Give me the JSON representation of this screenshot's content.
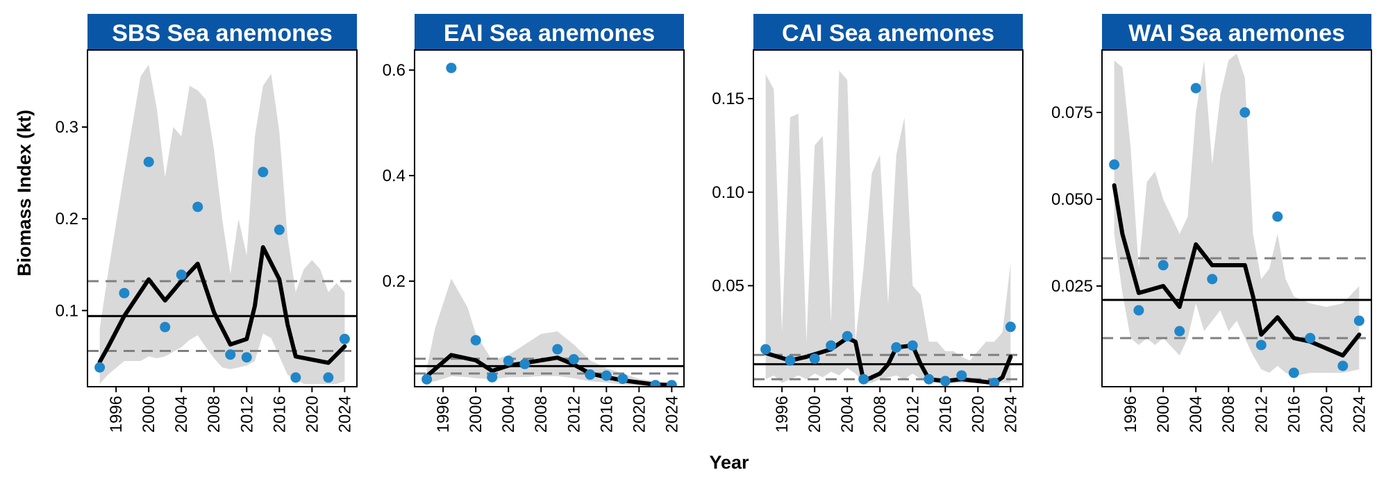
{
  "x_axis_title": "Year",
  "y_axis_title": "Biomass Index (kt)",
  "colors": {
    "strip": "#0a56a6",
    "strip_text": "#ffffff",
    "ribbon": "#d9d9d9",
    "trend_line": "#000000",
    "points": "#1f86c9",
    "mean_line": "#000000",
    "sd_lines": "#808080"
  },
  "chart_data": [
    {
      "type": "line",
      "title": "SBS Sea anemones",
      "xlim": [
        1992.5,
        2025.5
      ],
      "ylim": [
        0.017,
        0.384
      ],
      "xticks": [
        1996,
        2000,
        2004,
        2008,
        2012,
        2016,
        2020,
        2024
      ],
      "yticks": [
        0.1,
        0.2,
        0.3
      ],
      "ytick_labels": [
        "0.1",
        "0.2",
        "0.3"
      ],
      "points": {
        "x": [
          1994,
          1997,
          2000,
          2002,
          2004,
          2006,
          2010,
          2012,
          2014,
          2016,
          2018,
          2022,
          2024
        ],
        "y": [
          0.038,
          0.119,
          0.262,
          0.082,
          0.139,
          0.213,
          0.052,
          0.049,
          0.251,
          0.188,
          0.027,
          0.027,
          0.069
        ]
      },
      "trend": {
        "x": [
          1994,
          1995,
          1997,
          2000,
          2002,
          2004,
          2006,
          2008,
          2010,
          2012,
          2013,
          2014,
          2016,
          2017,
          2018,
          2022,
          2024
        ],
        "y": [
          0.044,
          0.06,
          0.094,
          0.134,
          0.111,
          0.132,
          0.151,
          0.098,
          0.063,
          0.069,
          0.105,
          0.169,
          0.134,
          0.085,
          0.05,
          0.043,
          0.061
        ]
      },
      "ribbon": {
        "x": [
          1994,
          1995,
          1997,
          1999,
          2000,
          2001,
          2002,
          2003,
          2004,
          2005,
          2006,
          2007,
          2008,
          2009,
          2010,
          2011,
          2012,
          2013,
          2014,
          2015,
          2016,
          2017,
          2018,
          2019,
          2020,
          2021,
          2022,
          2023,
          2024
        ],
        "lower": [
          0.02,
          0.03,
          0.045,
          0.045,
          0.05,
          0.048,
          0.05,
          0.055,
          0.06,
          0.068,
          0.073,
          0.06,
          0.048,
          0.038,
          0.036,
          0.038,
          0.04,
          0.045,
          0.075,
          0.07,
          0.05,
          0.03,
          0.025,
          0.02,
          0.02,
          0.02,
          0.02,
          0.02,
          0.023
        ],
        "upper": [
          0.08,
          0.14,
          0.25,
          0.355,
          0.368,
          0.32,
          0.245,
          0.3,
          0.29,
          0.345,
          0.34,
          0.33,
          0.275,
          0.2,
          0.14,
          0.2,
          0.16,
          0.29,
          0.345,
          0.358,
          0.295,
          0.18,
          0.12,
          0.145,
          0.155,
          0.145,
          0.12,
          0.13,
          0.12
        ]
      },
      "mean": 0.094,
      "sd_lines": [
        0.132,
        0.056
      ]
    },
    {
      "type": "line",
      "title": "EAI Sea anemones",
      "xlim": [
        1992.5,
        2025.5
      ],
      "ylim": [
        0.0,
        0.638
      ],
      "xticks": [
        1996,
        2000,
        2004,
        2008,
        2012,
        2016,
        2020,
        2024
      ],
      "yticks": [
        0.2,
        0.4,
        0.6
      ],
      "ytick_labels": [
        "0.2",
        "0.4",
        "0.6"
      ],
      "points": {
        "x": [
          1994,
          1997,
          2000,
          2002,
          2004,
          2006,
          2010,
          2012,
          2014,
          2016,
          2018,
          2022,
          2024
        ],
        "y": [
          0.014,
          0.604,
          0.088,
          0.018,
          0.049,
          0.043,
          0.071,
          0.052,
          0.023,
          0.021,
          0.015,
          0.003,
          0.003
        ]
      },
      "trend": {
        "x": [
          1994,
          1997,
          2000,
          2002,
          2004,
          2006,
          2010,
          2012,
          2014,
          2016,
          2018,
          2022,
          2024
        ],
        "y": [
          0.02,
          0.06,
          0.05,
          0.03,
          0.04,
          0.045,
          0.055,
          0.042,
          0.025,
          0.018,
          0.012,
          0.004,
          0.003
        ]
      },
      "ribbon": {
        "x": [
          1994,
          1995,
          1997,
          1999,
          2000,
          2002,
          2004,
          2006,
          2008,
          2010,
          2012,
          2014,
          2016,
          2018,
          2020,
          2022,
          2024
        ],
        "lower": [
          0.008,
          0.01,
          0.02,
          0.018,
          0.016,
          0.014,
          0.018,
          0.018,
          0.02,
          0.02,
          0.016,
          0.01,
          0.008,
          0.004,
          0.002,
          0.001,
          0.001
        ],
        "upper": [
          0.035,
          0.11,
          0.205,
          0.15,
          0.1,
          0.05,
          0.06,
          0.08,
          0.1,
          0.105,
          0.08,
          0.05,
          0.035,
          0.025,
          0.015,
          0.01,
          0.008
        ]
      },
      "mean": 0.039,
      "sd_lines": [
        0.053,
        0.025
      ]
    },
    {
      "type": "line",
      "title": "CAI Sea anemones",
      "xlim": [
        1992.5,
        2025.5
      ],
      "ylim": [
        -0.004,
        0.176
      ],
      "xticks": [
        1996,
        2000,
        2004,
        2008,
        2012,
        2016,
        2020,
        2024
      ],
      "yticks": [
        0.05,
        0.1,
        0.15
      ],
      "ytick_labels": [
        "0.05",
        "0.10",
        "0.15"
      ],
      "points": {
        "x": [
          1994,
          1997,
          2000,
          2002,
          2004,
          2006,
          2010,
          2012,
          2014,
          2016,
          2018,
          2022,
          2024
        ],
        "y": [
          0.016,
          0.01,
          0.011,
          0.018,
          0.023,
          0.0,
          0.017,
          0.018,
          0.0,
          -0.001,
          0.002,
          -0.002,
          0.028
        ]
      },
      "trend": {
        "x": [
          1994,
          1997,
          1999,
          2002,
          2004,
          2005,
          2006,
          2008,
          2009,
          2010,
          2012,
          2013,
          2014,
          2016,
          2018,
          2020,
          2022,
          2023,
          2024
        ],
        "y": [
          0.014,
          0.01,
          0.012,
          0.016,
          0.022,
          0.02,
          -0.001,
          0.003,
          0.008,
          0.017,
          0.018,
          0.008,
          0.0,
          -0.001,
          0.0,
          -0.001,
          -0.002,
          0.001,
          0.012
        ]
      },
      "ribbon": {
        "x": [
          1994,
          1995,
          1996,
          1997,
          1998,
          1999,
          2000,
          2001,
          2002,
          2003,
          2004,
          2005,
          2006,
          2007,
          2008,
          2009,
          2010,
          2011,
          2012,
          2013,
          2014,
          2015,
          2016,
          2017,
          2018,
          2019,
          2020,
          2021,
          2022,
          2023,
          2024
        ],
        "lower": [
          0.0,
          0.002,
          -0.002,
          0.0,
          0.002,
          0.0,
          0.003,
          0.001,
          0.004,
          0.002,
          0.006,
          0.003,
          -0.002,
          -0.002,
          0.0,
          0.001,
          0.002,
          0.0,
          0.003,
          0.0,
          -0.002,
          -0.002,
          -0.002,
          -0.002,
          -0.002,
          -0.002,
          -0.002,
          -0.002,
          -0.002,
          -0.002,
          -0.002
        ],
        "upper": [
          0.163,
          0.155,
          0.025,
          0.14,
          0.142,
          0.02,
          0.125,
          0.13,
          0.03,
          0.165,
          0.16,
          0.02,
          0.06,
          0.11,
          0.12,
          0.04,
          0.12,
          0.14,
          0.05,
          0.045,
          0.02,
          0.02,
          0.015,
          0.015,
          0.012,
          0.01,
          0.015,
          0.02,
          0.02,
          0.025,
          0.062
        ]
      },
      "mean": 0.008,
      "sd_lines": [
        0.013,
        0.0
      ]
    },
    {
      "type": "line",
      "title": "WAI Sea anemones",
      "xlim": [
        1992.5,
        2025.5
      ],
      "ylim": [
        -0.004,
        0.093
      ],
      "xticks": [
        1996,
        2000,
        2004,
        2008,
        2012,
        2016,
        2020,
        2024
      ],
      "yticks": [
        0.025,
        0.05,
        0.075
      ],
      "ytick_labels": [
        "0.025",
        "0.050",
        "0.075"
      ],
      "points": {
        "x": [
          1994,
          1997,
          2000,
          2002,
          2004,
          2006,
          2010,
          2012,
          2014,
          2016,
          2018,
          2022,
          2024
        ],
        "y": [
          0.06,
          0.018,
          0.031,
          0.012,
          0.082,
          0.027,
          0.075,
          0.008,
          0.045,
          0.0,
          0.01,
          0.002,
          0.015
        ]
      },
      "trend": {
        "x": [
          1994,
          1995,
          1997,
          2000,
          2002,
          2004,
          2006,
          2010,
          2011,
          2012,
          2014,
          2015,
          2016,
          2018,
          2022,
          2024
        ],
        "y": [
          0.054,
          0.04,
          0.023,
          0.025,
          0.019,
          0.037,
          0.031,
          0.031,
          0.022,
          0.011,
          0.016,
          0.013,
          0.01,
          0.009,
          0.005,
          0.011
        ]
      },
      "ribbon": {
        "x": [
          1994,
          1995,
          1996,
          1997,
          1998,
          1999,
          2000,
          2002,
          2003,
          2004,
          2005,
          2006,
          2007,
          2008,
          2009,
          2010,
          2011,
          2012,
          2013,
          2014,
          2015,
          2016,
          2018,
          2020,
          2022,
          2024
        ],
        "lower": [
          0.04,
          0.023,
          0.01,
          0.008,
          0.01,
          0.008,
          0.01,
          0.005,
          0.01,
          0.02,
          0.012,
          0.015,
          0.018,
          0.012,
          0.015,
          0.01,
          0.005,
          0.001,
          0.0,
          0.002,
          0.0,
          -0.001,
          0.0,
          0.0,
          0.0,
          0.001
        ],
        "upper": [
          0.09,
          0.088,
          0.065,
          0.03,
          0.055,
          0.058,
          0.05,
          0.04,
          0.045,
          0.075,
          0.09,
          0.06,
          0.08,
          0.09,
          0.092,
          0.085,
          0.04,
          0.027,
          0.03,
          0.04,
          0.027,
          0.022,
          0.02,
          0.019,
          0.02,
          0.025
        ]
      },
      "mean": 0.021,
      "sd_lines": [
        0.033,
        0.01
      ]
    }
  ]
}
